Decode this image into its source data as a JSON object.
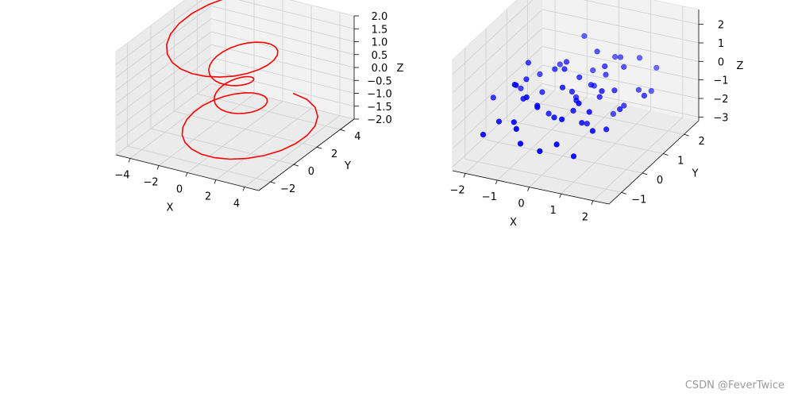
{
  "chart_data": [
    {
      "type": "line3d",
      "title": "",
      "xlabel": "X",
      "ylabel": "Y",
      "zlabel": "Z",
      "xlim": [
        -5,
        5
      ],
      "ylim": [
        -3,
        5.2
      ],
      "zlim": [
        -2,
        2
      ],
      "xticks": [
        -4,
        -2,
        0,
        2,
        4
      ],
      "yticks": [
        -2,
        0,
        2,
        4
      ],
      "zticks": [
        -2.0,
        -1.5,
        -1.0,
        -0.5,
        0.0,
        0.5,
        1.0,
        1.5,
        2.0
      ],
      "color": "#ff0000",
      "series": [
        {
          "description": "spiral: r = z^2 + 1, theta from -4pi to 4pi, z from -2 to 2",
          "theta_range": [
            -12.566,
            12.566
          ],
          "z_range": [
            -2,
            2
          ],
          "points": 100
        }
      ]
    },
    {
      "type": "scatter3d",
      "title": "",
      "xlabel": "X",
      "ylabel": "Y",
      "zlabel": "Z",
      "xlim": [
        -2.4,
        2.5
      ],
      "ylim": [
        -1.6,
        2.7
      ],
      "zlim": [
        -3.2,
        2.8
      ],
      "xticks": [
        -2,
        -1,
        0,
        1,
        2
      ],
      "yticks": [
        -1,
        0,
        1,
        2
      ],
      "zticks": [
        -3,
        -2,
        -1,
        0,
        1,
        2
      ],
      "color": "#0000ff",
      "points": [
        [
          -2.3,
          0.2,
          -1.1
        ],
        [
          -1.2,
          0.1,
          0.4
        ],
        [
          -0.8,
          -0.5,
          0.2
        ],
        [
          -0.4,
          0.8,
          0.9
        ],
        [
          0.2,
          0.5,
          0.6
        ],
        [
          0.9,
          1.4,
          1.0
        ],
        [
          1.3,
          1.7,
          0.8
        ],
        [
          1.6,
          0.3,
          -0.4
        ],
        [
          -1.0,
          -0.8,
          -0.9
        ],
        [
          -0.6,
          -1.1,
          -1.6
        ],
        [
          0.0,
          -0.4,
          -0.7
        ],
        [
          0.4,
          0.9,
          -0.2
        ],
        [
          0.8,
          -0.3,
          -0.8
        ],
        [
          1.1,
          0.2,
          0.5
        ],
        [
          1.8,
          1.5,
          -0.6
        ],
        [
          2.1,
          0.7,
          0.1
        ],
        [
          -1.6,
          -0.6,
          -1.3
        ],
        [
          -1.3,
          0.9,
          -0.2
        ],
        [
          -0.2,
          -0.9,
          0.3
        ],
        [
          0.3,
          1.2,
          1.3
        ],
        [
          0.6,
          -1.2,
          -1.1
        ],
        [
          1.0,
          0.9,
          -1.5
        ],
        [
          1.4,
          -0.7,
          -0.6
        ],
        [
          -0.9,
          0.4,
          -0.5
        ],
        [
          -0.5,
          0.1,
          -1.2
        ],
        [
          0.1,
          0.3,
          0.0
        ],
        [
          0.5,
          0.6,
          0.2
        ],
        [
          0.7,
          1.0,
          0.4
        ],
        [
          -1.9,
          -0.9,
          -1.8
        ],
        [
          -1.4,
          0.5,
          0.8
        ],
        [
          -0.3,
          1.5,
          1.6
        ],
        [
          0.2,
          -1.4,
          -1.4
        ],
        [
          1.2,
          1.1,
          0.9
        ],
        [
          1.5,
          -0.2,
          -1.0
        ],
        [
          -1.1,
          -0.2,
          -0.3
        ],
        [
          -0.7,
          0.7,
          0.5
        ],
        [
          0.4,
          -0.1,
          -0.5
        ],
        [
          0.9,
          0.4,
          -0.1
        ],
        [
          1.7,
          1.9,
          0.2
        ],
        [
          -1.5,
          0.0,
          0.1
        ],
        [
          -0.1,
          0.8,
          -0.9
        ],
        [
          0.6,
          1.6,
          0.7
        ],
        [
          1.0,
          -1.0,
          -1.8
        ],
        [
          -0.4,
          -0.6,
          0.0
        ],
        [
          0.0,
          0.0,
          0.5
        ],
        [
          0.3,
          0.2,
          -0.3
        ],
        [
          0.8,
          0.8,
          1.1
        ],
        [
          1.3,
          0.5,
          0.3
        ],
        [
          -1.7,
          0.6,
          -0.8
        ],
        [
          -0.8,
          1.1,
          0.3
        ],
        [
          0.5,
          -0.8,
          -0.2
        ],
        [
          1.1,
          -0.4,
          0.0
        ],
        [
          -0.6,
          -1.3,
          -0.6
        ],
        [
          0.1,
          1.3,
          0.1
        ],
        [
          0.7,
          0.1,
          -1.3
        ],
        [
          1.6,
          1.2,
          -0.3
        ],
        [
          -1.2,
          -0.4,
          0.6
        ],
        [
          -0.2,
          0.4,
          1.0
        ],
        [
          0.9,
          -0.6,
          0.6
        ],
        [
          1.4,
          0.8,
          -0.8
        ]
      ]
    }
  ],
  "watermark": "CSDN @FeverTwice"
}
